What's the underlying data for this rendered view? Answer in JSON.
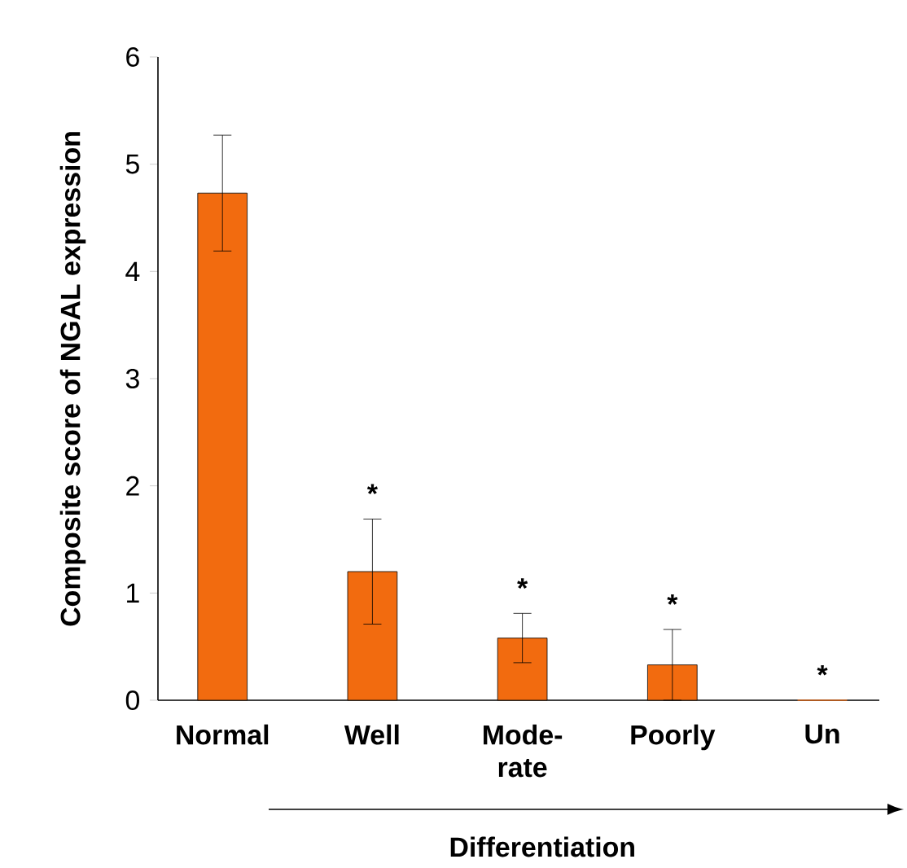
{
  "chart_data": {
    "type": "bar",
    "ylabel": "Composite score of NGAL expression",
    "xlabel": "Differentiation",
    "categories": [
      "Normal",
      "Well",
      "Mode- rate",
      "Poorly",
      "Un"
    ],
    "values": [
      4.73,
      1.2,
      0.58,
      0.33,
      0
    ],
    "errors": [
      0.54,
      0.49,
      0.23,
      0.33,
      null
    ],
    "color": "#f26b0f",
    "ylim": [
      0,
      6
    ],
    "yticks": [
      0,
      1,
      2,
      3,
      4,
      5,
      6
    ],
    "annotations": [
      "*",
      "*",
      "*",
      "*"
    ]
  }
}
